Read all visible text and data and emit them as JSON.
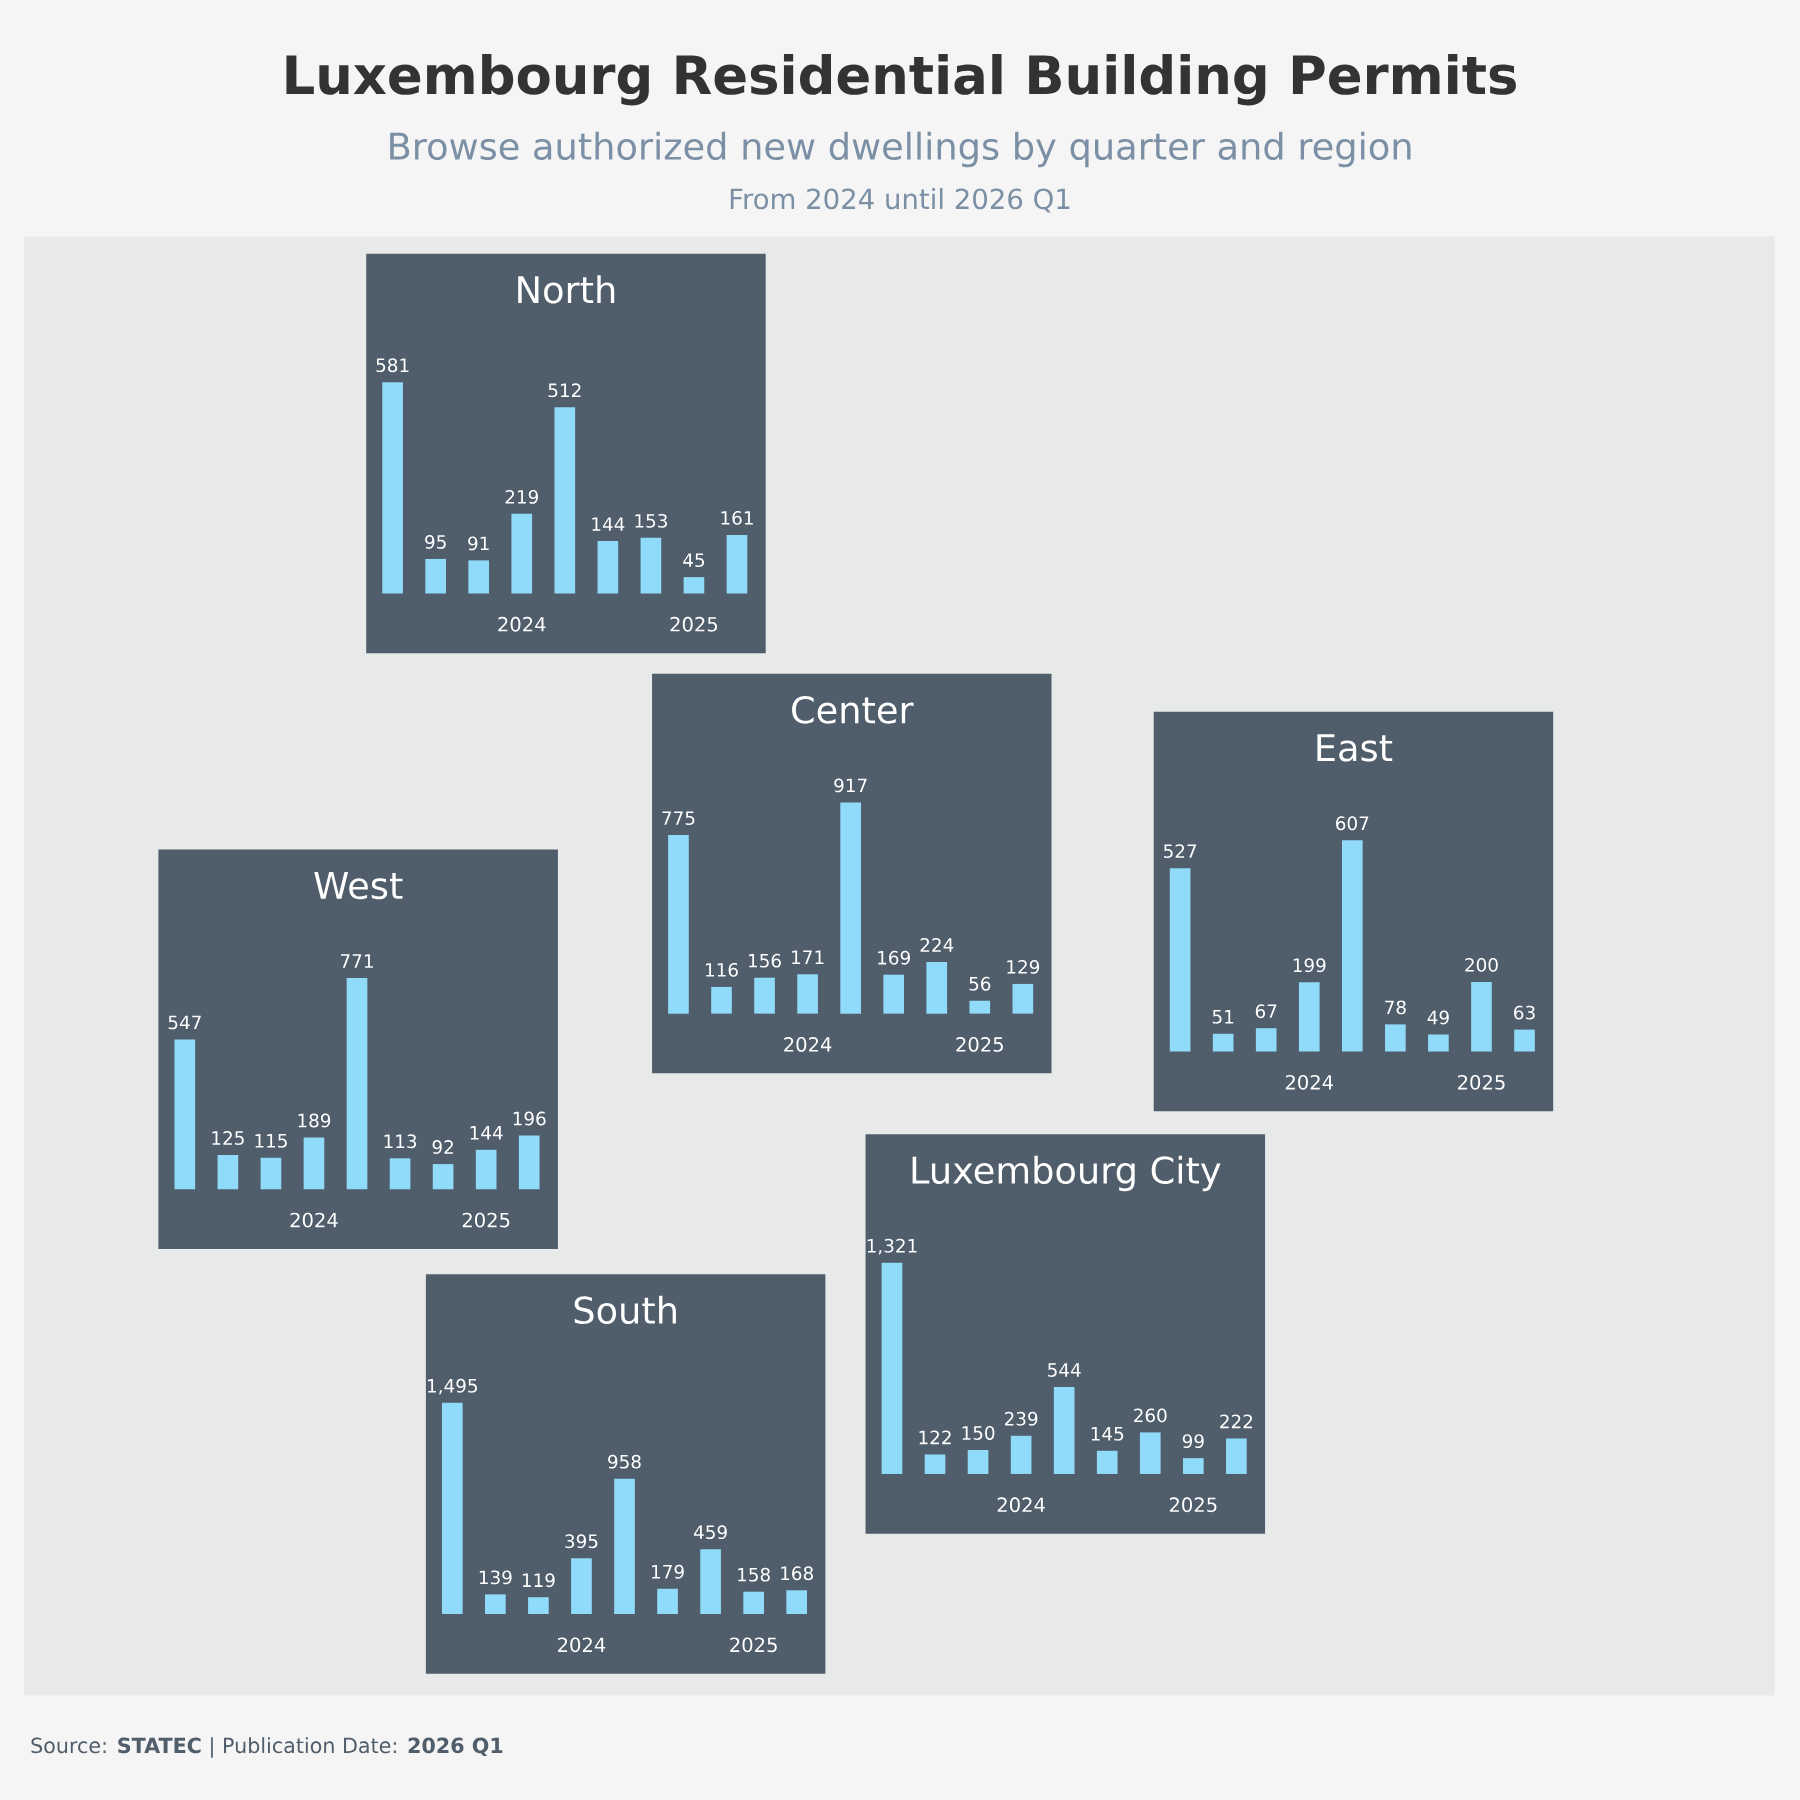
{
  "chart_data": [
    {
      "type": "other",
      "title": "Luxembourg Residential Building Permits",
      "subtitle": "Browse authorized new dwellings by quarter and region",
      "annotations": [
        "From 2024 until 2026 Q1"
      ]
    },
    {
      "type": "bar",
      "title": "North",
      "categories": [
        null,
        null,
        null,
        "2024",
        null,
        null,
        null,
        "2025",
        null
      ],
      "values": [
        581,
        95,
        91,
        219,
        512,
        144,
        153,
        45,
        161
      ],
      "value_labels": [
        "581",
        "95",
        "91",
        "219",
        "512",
        "144",
        "153",
        "45",
        "161"
      ],
      "color": "#91dbfa"
    },
    {
      "type": "bar",
      "title": "Center",
      "categories": [
        null,
        null,
        null,
        "2024",
        null,
        null,
        null,
        "2025",
        null
      ],
      "values": [
        775,
        116,
        156,
        171,
        917,
        169,
        224,
        56,
        129
      ],
      "value_labels": [
        "775",
        "116",
        "156",
        "171",
        "917",
        "169",
        "224",
        "56",
        "129"
      ],
      "color": "#91dbfa"
    },
    {
      "type": "bar",
      "title": "East",
      "categories": [
        null,
        null,
        null,
        "2024",
        null,
        null,
        null,
        "2025",
        null
      ],
      "values": [
        527,
        51,
        67,
        199,
        607,
        78,
        49,
        200,
        63
      ],
      "value_labels": [
        "527",
        "51",
        "67",
        "199",
        "607",
        "78",
        "49",
        "200",
        "63"
      ],
      "color": "#91dbfa"
    },
    {
      "type": "bar",
      "title": "West",
      "categories": [
        null,
        null,
        null,
        "2024",
        null,
        null,
        null,
        "2025",
        null
      ],
      "values": [
        547,
        125,
        115,
        189,
        771,
        113,
        92,
        144,
        196
      ],
      "value_labels": [
        "547",
        "125",
        "115",
        "189",
        "771",
        "113",
        "92",
        "144",
        "196"
      ],
      "color": "#91dbfa"
    },
    {
      "type": "bar",
      "title": "Luxembourg City",
      "categories": [
        null,
        null,
        null,
        "2024",
        null,
        null,
        null,
        "2025",
        null
      ],
      "values": [
        1321,
        122,
        150,
        239,
        544,
        145,
        260,
        99,
        222
      ],
      "value_labels": [
        "1,321",
        "122",
        "150",
        "239",
        "544",
        "145",
        "260",
        "99",
        "222"
      ],
      "color": "#91dbfa"
    },
    {
      "type": "bar",
      "title": "South",
      "categories": [
        null,
        null,
        null,
        "2024",
        null,
        null,
        null,
        "2025",
        null
      ],
      "values": [
        1495,
        139,
        119,
        395,
        958,
        179,
        459,
        158,
        168
      ],
      "value_labels": [
        "1,495",
        "139",
        "119",
        "395",
        "958",
        "179",
        "459",
        "158",
        "168"
      ],
      "color": "#91dbfa"
    },
    {
      "type": "other",
      "annotations": [
        "Source: **STATEC** | Publication Date: **2026 Q1**"
      ]
    }
  ]
}
